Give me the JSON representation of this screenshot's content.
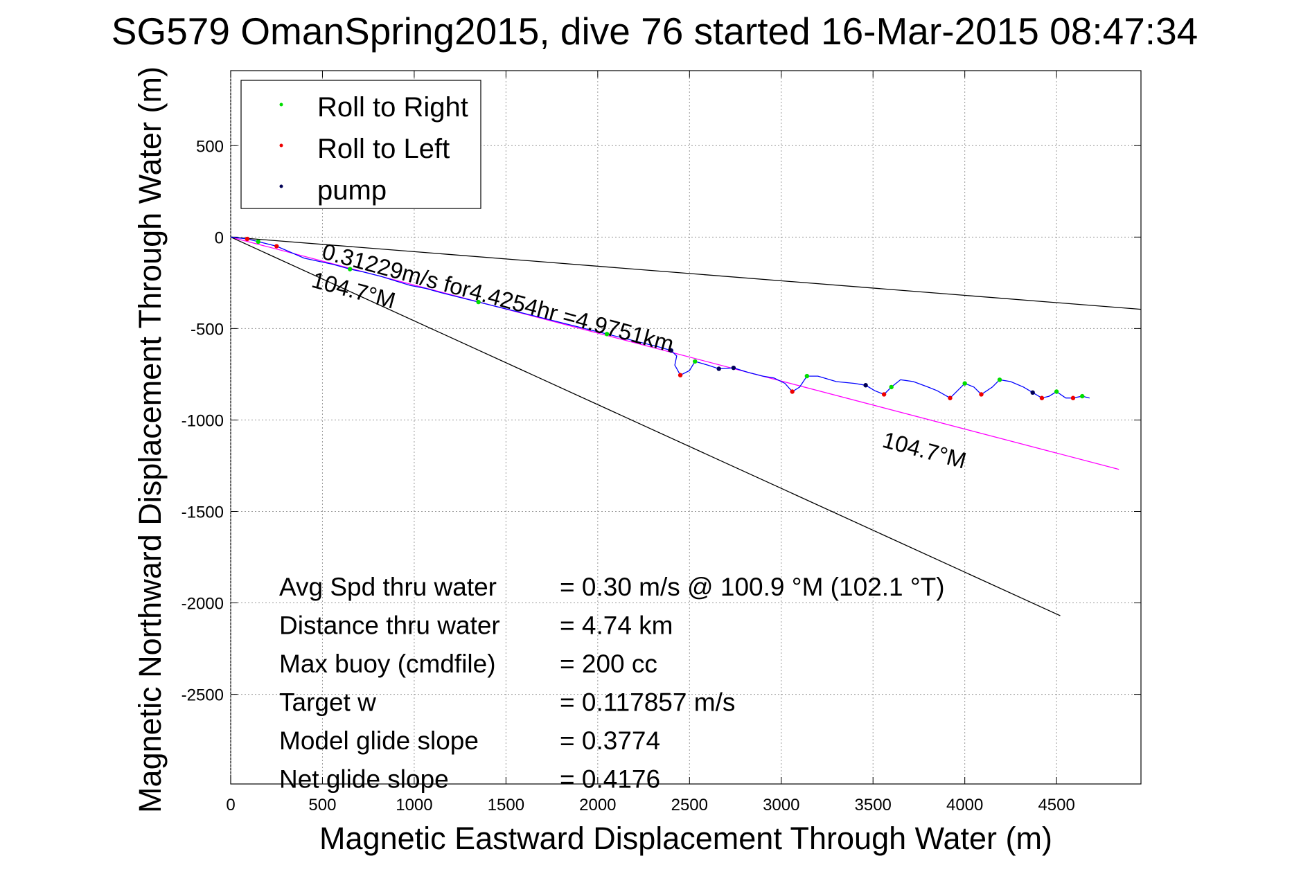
{
  "chart_data": {
    "type": "line",
    "title": "SG579 OmanSpring2015, dive 76 started 16-Mar-2015 08:47:34",
    "xlabel": "Magnetic Eastward Displacement Through Water (m)",
    "ylabel": "Magnetic Northward Displacement Through Water (m)",
    "xlim": [
      0,
      4960
    ],
    "ylim": [
      -2990,
      910
    ],
    "xticks": [
      0,
      500,
      1000,
      1500,
      2000,
      2500,
      3000,
      3500,
      4000,
      4500
    ],
    "yticks": [
      500,
      0,
      -500,
      -1000,
      -1500,
      -2000,
      -2500
    ],
    "grid": true,
    "legend": {
      "placement": "top-left",
      "entries": [
        "Roll to Right",
        "Roll to Left",
        "pump"
      ]
    },
    "colors": {
      "track": "#0000ff",
      "roll_right": "#00dd00",
      "roll_left": "#ee0000",
      "pump": "#000055",
      "heading": "#ff00ff",
      "bounds": "#000000"
    },
    "series": [
      {
        "name": "track",
        "points": [
          [
            0,
            0
          ],
          [
            90,
            -10
          ],
          [
            150,
            -25
          ],
          [
            250,
            -50
          ],
          [
            320,
            -80
          ],
          [
            400,
            -115
          ],
          [
            470,
            -130
          ],
          [
            560,
            -150
          ],
          [
            650,
            -175
          ],
          [
            720,
            -190
          ],
          [
            820,
            -215
          ],
          [
            900,
            -240
          ],
          [
            980,
            -265
          ],
          [
            1060,
            -280
          ],
          [
            1150,
            -305
          ],
          [
            1250,
            -330
          ],
          [
            1350,
            -355
          ],
          [
            1450,
            -380
          ],
          [
            1550,
            -405
          ],
          [
            1650,
            -430
          ],
          [
            1750,
            -455
          ],
          [
            1850,
            -480
          ],
          [
            1950,
            -505
          ],
          [
            2050,
            -530
          ],
          [
            2150,
            -555
          ],
          [
            2250,
            -580
          ],
          [
            2330,
            -600
          ],
          [
            2400,
            -620
          ],
          [
            2430,
            -650
          ],
          [
            2420,
            -700
          ],
          [
            2450,
            -755
          ],
          [
            2500,
            -730
          ],
          [
            2530,
            -680
          ],
          [
            2600,
            -700
          ],
          [
            2660,
            -720
          ],
          [
            2740,
            -715
          ],
          [
            2820,
            -740
          ],
          [
            2900,
            -760
          ],
          [
            2960,
            -770
          ],
          [
            3020,
            -800
          ],
          [
            3060,
            -845
          ],
          [
            3100,
            -820
          ],
          [
            3140,
            -760
          ],
          [
            3200,
            -760
          ],
          [
            3300,
            -790
          ],
          [
            3400,
            -800
          ],
          [
            3460,
            -810
          ],
          [
            3510,
            -840
          ],
          [
            3560,
            -860
          ],
          [
            3600,
            -820
          ],
          [
            3650,
            -780
          ],
          [
            3720,
            -790
          ],
          [
            3800,
            -820
          ],
          [
            3850,
            -840
          ],
          [
            3920,
            -880
          ],
          [
            3960,
            -840
          ],
          [
            4000,
            -800
          ],
          [
            4050,
            -820
          ],
          [
            4090,
            -860
          ],
          [
            4150,
            -820
          ],
          [
            4190,
            -780
          ],
          [
            4250,
            -790
          ],
          [
            4320,
            -820
          ],
          [
            4370,
            -850
          ],
          [
            4420,
            -880
          ],
          [
            4460,
            -870
          ],
          [
            4500,
            -845
          ],
          [
            4550,
            -880
          ],
          [
            4590,
            -880
          ],
          [
            4640,
            -870
          ],
          [
            4680,
            -880
          ]
        ]
      },
      {
        "name": "Roll to Right",
        "points": [
          [
            150,
            -25
          ],
          [
            650,
            -175
          ],
          [
            1350,
            -355
          ],
          [
            2050,
            -530
          ],
          [
            2530,
            -680
          ],
          [
            3140,
            -760
          ],
          [
            3600,
            -820
          ],
          [
            4000,
            -800
          ],
          [
            4190,
            -780
          ],
          [
            4500,
            -845
          ],
          [
            4640,
            -870
          ]
        ]
      },
      {
        "name": "Roll to Left",
        "points": [
          [
            90,
            -10
          ],
          [
            250,
            -50
          ],
          [
            2450,
            -755
          ],
          [
            3060,
            -845
          ],
          [
            3560,
            -860
          ],
          [
            3920,
            -880
          ],
          [
            4090,
            -860
          ],
          [
            4420,
            -880
          ],
          [
            4590,
            -880
          ]
        ]
      },
      {
        "name": "pump",
        "points": [
          [
            2400,
            -620
          ],
          [
            2660,
            -720
          ],
          [
            2740,
            -715
          ],
          [
            3460,
            -810
          ],
          [
            4370,
            -850
          ]
        ]
      }
    ],
    "reference_lines": [
      {
        "name": "heading",
        "from": [
          0,
          0
        ],
        "to": [
          4840,
          -1270
        ]
      },
      {
        "name": "bound-upper",
        "from": [
          0,
          0
        ],
        "to": [
          4960,
          -395
        ]
      },
      {
        "name": "bound-lower",
        "from": [
          0,
          0
        ],
        "to": [
          4520,
          -2070
        ]
      }
    ],
    "annotations": {
      "speed": "0.31229m/s for4.4254hr =4.9751km",
      "heading_upper": "104.7°M",
      "heading_lower": "104.7°M"
    },
    "summary": [
      {
        "label": "Avg Spd thru water",
        "value": "=  0.30 m/s @ 100.9 °M (102.1 °T)"
      },
      {
        "label": "Distance thru water",
        "value": "=  4.74 km"
      },
      {
        "label": "Max buoy (cmdfile)",
        "value": "= 200 cc"
      },
      {
        "label": "Target w",
        "value": "= 0.117857 m/s"
      },
      {
        "label": "Model glide slope",
        "value": "= 0.3774"
      },
      {
        "label": "Net glide slope",
        "value": "= 0.4176"
      }
    ]
  }
}
